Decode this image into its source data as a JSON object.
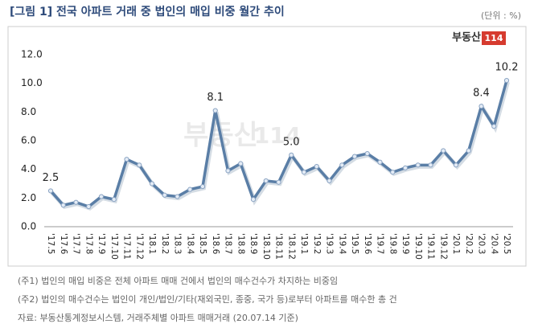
{
  "chart_data": {
    "type": "line",
    "title": "[그림 1] 전국 아파트 거래 중 법인의 매입 비중 월간 추이",
    "unit": "(단위 : %)",
    "logo": {
      "text": "부동산",
      "badge": "114"
    },
    "categories": [
      "'17.5",
      "'17.6",
      "'17.7",
      "'17.8",
      "'17.9",
      "'17.10",
      "'17.11",
      "'17.12",
      "'18.1",
      "'18.2",
      "'18.3",
      "'18.4",
      "'18.5",
      "'18.6",
      "'18.7",
      "'18.8",
      "'18.9",
      "'18.10",
      "'18.11",
      "'18.12",
      "'19.1",
      "'19.2",
      "'19.3",
      "'19.4",
      "'19.5",
      "'19.6",
      "'19.7",
      "'19.8",
      "'19.9",
      "'19.10",
      "'19.11",
      "'19.12",
      "'20.1",
      "'20.2",
      "'20.3",
      "'20.4",
      "'20.5"
    ],
    "values": [
      2.5,
      1.5,
      1.7,
      1.4,
      2.1,
      1.9,
      4.7,
      4.3,
      3.0,
      2.2,
      2.1,
      2.6,
      2.8,
      8.1,
      3.9,
      4.4,
      1.9,
      3.2,
      3.1,
      5.0,
      3.8,
      4.2,
      3.2,
      4.3,
      4.9,
      5.1,
      4.5,
      3.8,
      4.1,
      4.3,
      4.3,
      5.3,
      4.3,
      5.3,
      8.4,
      7.0,
      10.2
    ],
    "value_labels": [
      "2.5",
      null,
      null,
      null,
      null,
      null,
      null,
      null,
      null,
      null,
      null,
      null,
      null,
      "8.1",
      null,
      null,
      null,
      null,
      null,
      "5.0",
      null,
      null,
      null,
      null,
      null,
      null,
      null,
      null,
      null,
      null,
      null,
      null,
      null,
      null,
      "8.4",
      null,
      "10.2"
    ],
    "color": "#5a7ea6",
    "ylim": [
      0,
      12
    ],
    "yticks": [
      {
        "value": 0,
        "label": "0.0"
      },
      {
        "value": 2,
        "label": "2.0"
      },
      {
        "value": 4,
        "label": "4.0"
      },
      {
        "value": 6,
        "label": "6.0"
      },
      {
        "value": 8,
        "label": "8.0"
      },
      {
        "value": 10,
        "label": "10.0"
      },
      {
        "value": 12,
        "label": "12.0"
      }
    ],
    "notes": [
      "(주1) 법인의 매입 비중은 전체 아파트 매매 건에서 법인의 매수건수가 차지하는 비중임",
      "(주2) 법인의 매수건수는 법인이 개인/법인/기타(재외국민, 종중, 국가 등)로부터 아파트를 매수한 총 건",
      "자료: 부동산통계정보시스템, 거래주체별 아파트 매매거래 (20.07.14 기준)"
    ]
  }
}
